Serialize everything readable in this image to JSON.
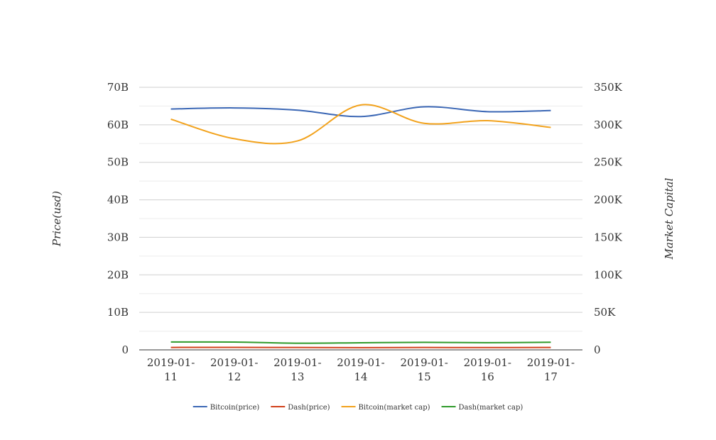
{
  "chart_data": {
    "type": "line",
    "x": [
      "2019-01-11",
      "2019-01-12",
      "2019-01-13",
      "2019-01-14",
      "2019-01-15",
      "2019-01-16",
      "2019-01-17"
    ],
    "x_tick_labels": [
      [
        "2019-01-",
        "11"
      ],
      [
        "2019-01-",
        "12"
      ],
      [
        "2019-01-",
        "13"
      ],
      [
        "2019-01-",
        "14"
      ],
      [
        "2019-01-",
        "15"
      ],
      [
        "2019-01-",
        "16"
      ],
      [
        "2019-01-",
        "17"
      ]
    ],
    "y_left": {
      "label": "Price(usd)",
      "range": [
        0,
        70000000000
      ],
      "ticks": [
        0,
        10000000000,
        20000000000,
        30000000000,
        40000000000,
        50000000000,
        60000000000,
        70000000000
      ],
      "tick_labels": [
        "0",
        "10B",
        "20B",
        "30B",
        "40B",
        "50B",
        "60B",
        "70B"
      ]
    },
    "y_right": {
      "label": "Market Capital",
      "range": [
        0,
        350000
      ],
      "ticks": [
        0,
        50000,
        100000,
        150000,
        200000,
        250000,
        300000,
        350000
      ],
      "tick_labels": [
        "0",
        "50K",
        "100K",
        "150K",
        "200K",
        "250K",
        "300K",
        "350K"
      ]
    },
    "grid": true,
    "legend_position": "bottom",
    "series": [
      {
        "name": "Bitcoin(price)",
        "axis": "left",
        "color": "#3b67b5",
        "values": [
          64200000000,
          64500000000,
          63900000000,
          62200000000,
          64800000000,
          63500000000,
          63800000000
        ]
      },
      {
        "name": "Dash(price)",
        "axis": "left",
        "color": "#d1401a",
        "values": [
          650000000,
          660000000,
          640000000,
          600000000,
          630000000,
          620000000,
          640000000
        ]
      },
      {
        "name": "Bitcoin(market cap)",
        "axis": "right",
        "color": "#f2a21c",
        "values": [
          307500,
          281500,
          278500,
          326500,
          302000,
          305500,
          296500
        ]
      },
      {
        "name": "Dash(market cap)",
        "axis": "right",
        "color": "#2f9a2a",
        "values": [
          10500,
          10400,
          8900,
          9500,
          10000,
          9600,
          10200
        ]
      }
    ]
  }
}
